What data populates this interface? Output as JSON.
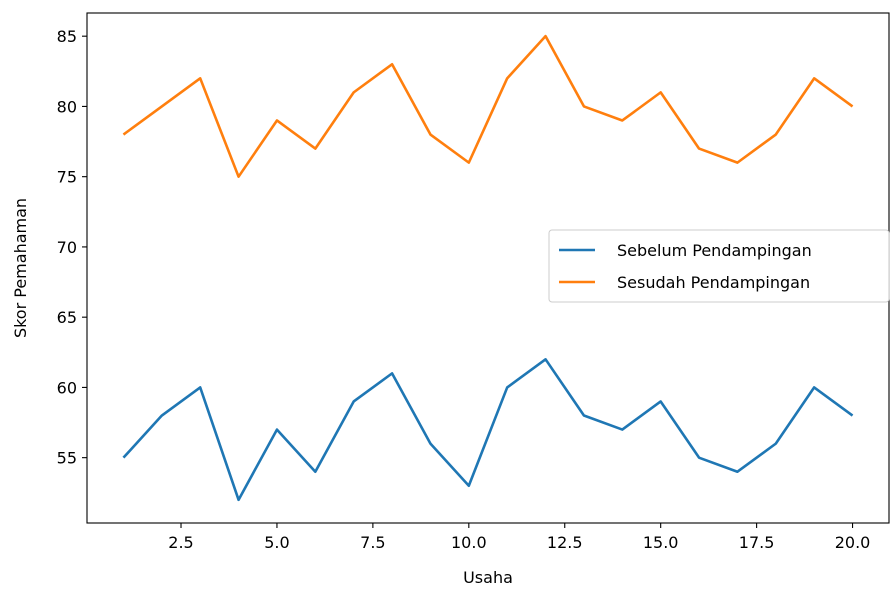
{
  "chart_data": {
    "type": "line",
    "title": "",
    "xlabel": "Usaha",
    "ylabel": "Skor Pemahaman",
    "xlim": [
      0.05,
      20.95
    ],
    "ylim": [
      50.35,
      86.65
    ],
    "xticks": [
      2.5,
      5.0,
      7.5,
      10.0,
      12.5,
      15.0,
      17.5,
      20.0
    ],
    "xtick_labels": [
      "2.5",
      "5.0",
      "7.5",
      "10.0",
      "12.5",
      "15.0",
      "17.5",
      "20.0"
    ],
    "yticks": [
      55,
      60,
      65,
      70,
      75,
      80,
      85
    ],
    "ytick_labels": [
      "55",
      "60",
      "65",
      "70",
      "75",
      "80",
      "85"
    ],
    "grid": false,
    "legend_position": "center-right",
    "x": [
      1,
      2,
      3,
      4,
      5,
      6,
      7,
      8,
      9,
      10,
      11,
      12,
      13,
      14,
      15,
      16,
      17,
      18,
      19,
      20
    ],
    "series": [
      {
        "name": "Sebelum Pendampingan",
        "color": "#1f77b4",
        "values": [
          55,
          58,
          60,
          52,
          57,
          54,
          59,
          61,
          56,
          53,
          60,
          62,
          58,
          57,
          59,
          55,
          54,
          56,
          60,
          58
        ]
      },
      {
        "name": "Sesudah Pendampingan",
        "color": "#ff7f0e",
        "values": [
          78,
          80,
          82,
          75,
          79,
          77,
          81,
          83,
          78,
          76,
          82,
          85,
          80,
          79,
          81,
          77,
          76,
          78,
          82,
          80
        ]
      }
    ]
  }
}
